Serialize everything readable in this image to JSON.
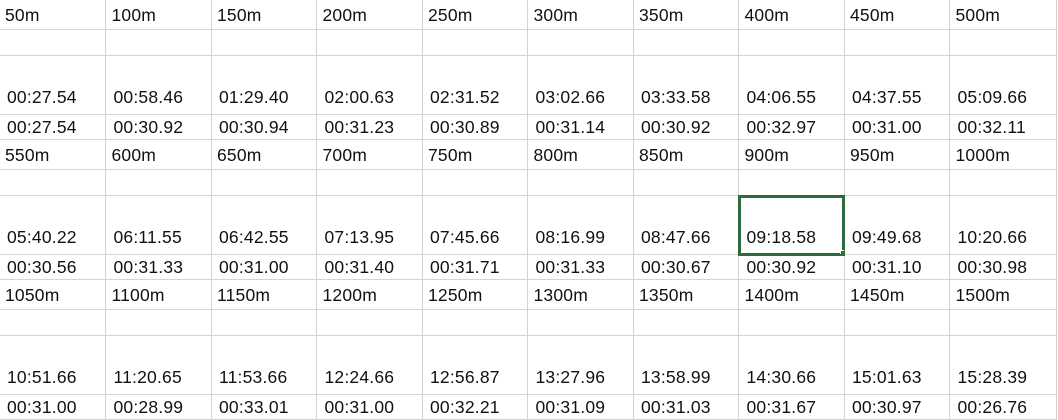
{
  "colors": {
    "gridline": "#d4d4d4",
    "selection": "#2e6b3f",
    "text": "#111111"
  },
  "sheet": {
    "blocks": [
      {
        "distances": [
          "50m",
          "100m",
          "150m",
          "200m",
          "250m",
          "300m",
          "350m",
          "400m",
          "450m",
          "500m"
        ],
        "cumulative": [
          "00:27.54",
          "00:58.46",
          "01:29.40",
          "02:00.63",
          "02:31.52",
          "03:02.66",
          "03:33.58",
          "04:06.55",
          "04:37.55",
          "05:09.66"
        ],
        "splits": [
          "00:27.54",
          "00:30.92",
          "00:30.94",
          "00:31.23",
          "00:30.89",
          "00:31.14",
          "00:30.92",
          "00:32.97",
          "00:31.00",
          "00:32.11"
        ]
      },
      {
        "distances": [
          "550m",
          "600m",
          "650m",
          "700m",
          "750m",
          "800m",
          "850m",
          "900m",
          "950m",
          "1000m"
        ],
        "cumulative": [
          "05:40.22",
          "06:11.55",
          "06:42.55",
          "07:13.95",
          "07:45.66",
          "08:16.99",
          "08:47.66",
          "09:18.58",
          "09:49.68",
          "10:20.66"
        ],
        "splits": [
          "00:30.56",
          "00:31.33",
          "00:31.00",
          "00:31.40",
          "00:31.71",
          "00:31.33",
          "00:30.67",
          "00:30.92",
          "00:31.10",
          "00:30.98"
        ]
      },
      {
        "distances": [
          "1050m",
          "1100m",
          "1150m",
          "1200m",
          "1250m",
          "1300m",
          "1350m",
          "1400m",
          "1450m",
          "1500m"
        ],
        "cumulative": [
          "10:51.66",
          "11:20.65",
          "11:53.66",
          "12:24.66",
          "12:56.87",
          "13:27.96",
          "13:58.99",
          "14:30.66",
          "15:01.63",
          "15:28.39"
        ],
        "splits": [
          "00:31.00",
          "00:28.99",
          "00:33.01",
          "00:31.00",
          "00:32.21",
          "00:31.09",
          "00:31.03",
          "00:31.67",
          "00:30.97",
          "00:26.76"
        ]
      }
    ],
    "selected_cell": {
      "block": 1,
      "row": "cumulative",
      "col": 7
    }
  }
}
